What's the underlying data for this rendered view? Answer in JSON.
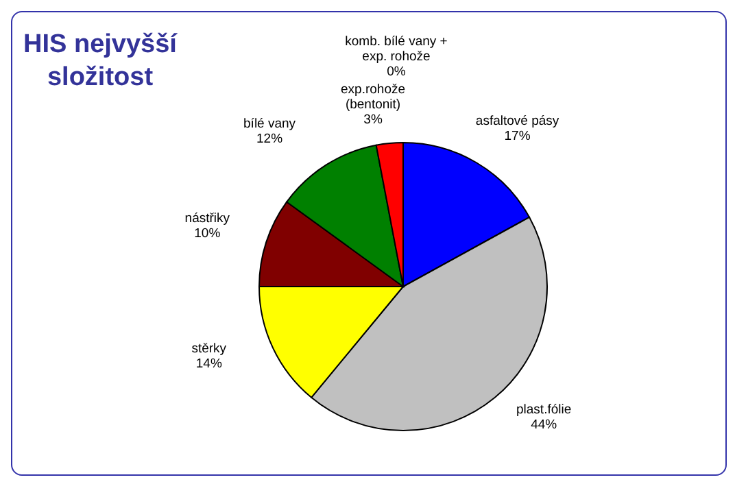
{
  "chart_data": {
    "type": "pie",
    "title": "HIS nejvyšší složitost",
    "categories": [
      "asfaltové pásy",
      "plast.fólie",
      "stěrky",
      "nástřiky",
      "bílé vany",
      "exp.rohože (bentonit)",
      "komb. bílé vany + exp. rohože"
    ],
    "values": [
      17,
      44,
      14,
      10,
      12,
      3,
      0
    ],
    "value_labels": [
      "17%",
      "44%",
      "14%",
      "10%",
      "12%",
      "3%",
      "0%"
    ],
    "colors": [
      "#0000ff",
      "#c0c0c0",
      "#ffff00",
      "#800000",
      "#008000",
      "#ff0000",
      "#000080"
    ]
  }
}
